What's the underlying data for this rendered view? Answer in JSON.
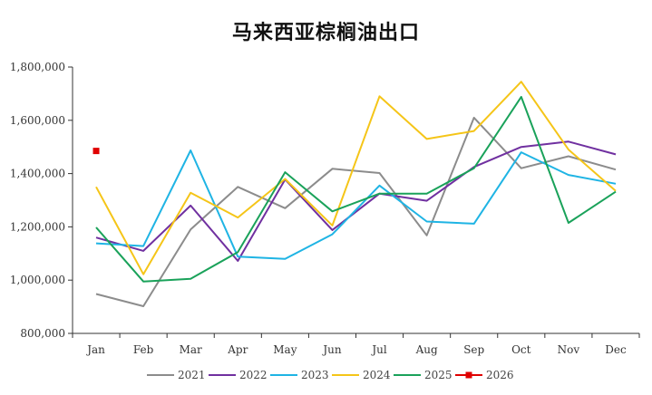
{
  "chart_data": {
    "type": "line",
    "title": "马来西亚棕榈油出口",
    "xlabel": "",
    "ylabel": "",
    "categories": [
      "Jan",
      "Feb",
      "Mar",
      "Apr",
      "May",
      "Jun",
      "Jul",
      "Aug",
      "Sep",
      "Oct",
      "Nov",
      "Dec"
    ],
    "ylim": [
      800000,
      1800000
    ],
    "yticks": [
      800000,
      1000000,
      1200000,
      1400000,
      1600000,
      1800000
    ],
    "ytick_labels": [
      "800,000",
      "1,000,000",
      "1,200,000",
      "1,400,000",
      "1,600,000",
      "1,800,000"
    ],
    "grid": false,
    "legend_position": "bottom",
    "series": [
      {
        "name": "2021",
        "color": "#8c8c8c",
        "marker": "none",
        "values": [
          948000,
          902000,
          1190000,
          1350000,
          1270000,
          1418000,
          1402000,
          1168000,
          1610000,
          1420000,
          1465000,
          1415000
        ]
      },
      {
        "name": "2022",
        "color": "#7030a0",
        "marker": "none",
        "values": [
          1160000,
          1110000,
          1280000,
          1072000,
          1378000,
          1188000,
          1325000,
          1298000,
          1425000,
          1500000,
          1520000,
          1472000
        ]
      },
      {
        "name": "2023",
        "color": "#1fb4e4",
        "marker": "none",
        "values": [
          1138000,
          1128000,
          1487000,
          1088000,
          1080000,
          1172000,
          1355000,
          1220000,
          1212000,
          1480000,
          1395000,
          1362000
        ]
      },
      {
        "name": "2024",
        "color": "#f5c518",
        "marker": "none",
        "values": [
          1350000,
          1022000,
          1328000,
          1235000,
          1380000,
          1205000,
          1690000,
          1530000,
          1560000,
          1745000,
          1490000,
          1335000
        ]
      },
      {
        "name": "2025",
        "color": "#1aa25a",
        "marker": "none",
        "values": [
          1198000,
          995000,
          1005000,
          1105000,
          1405000,
          1258000,
          1325000,
          1325000,
          1420000,
          1688000,
          1215000,
          1332000
        ]
      },
      {
        "name": "2026",
        "color": "#e00000",
        "marker": "square",
        "values": [
          1485000,
          null,
          null,
          null,
          null,
          null,
          null,
          null,
          null,
          null,
          null,
          null
        ]
      }
    ]
  }
}
